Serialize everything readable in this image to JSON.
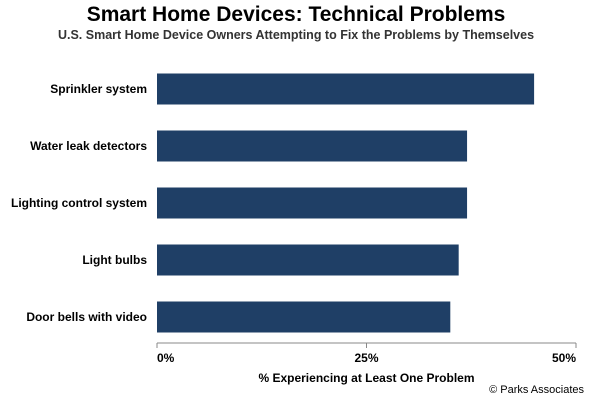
{
  "chart_data": {
    "type": "bar",
    "orientation": "horizontal",
    "title": "Smart Home Devices: Technical Problems",
    "subtitle": "U.S. Smart Home Device Owners Attempting to Fix the Problems by Themselves",
    "categories": [
      "Sprinkler system",
      "Water leak detectors",
      "Lighting control system",
      "Light bulbs",
      "Door bells with video"
    ],
    "values": [
      45,
      37,
      37,
      36,
      35
    ],
    "xlabel": "% Experiencing at Least One Problem",
    "ylabel": "",
    "xlim": [
      0,
      50
    ],
    "x_ticks": [
      0,
      25,
      50
    ],
    "x_tick_labels": [
      "0%",
      "25%",
      "50%"
    ],
    "grid": false,
    "bar_color": "#1f3f66",
    "credit": "© Parks Associates"
  }
}
